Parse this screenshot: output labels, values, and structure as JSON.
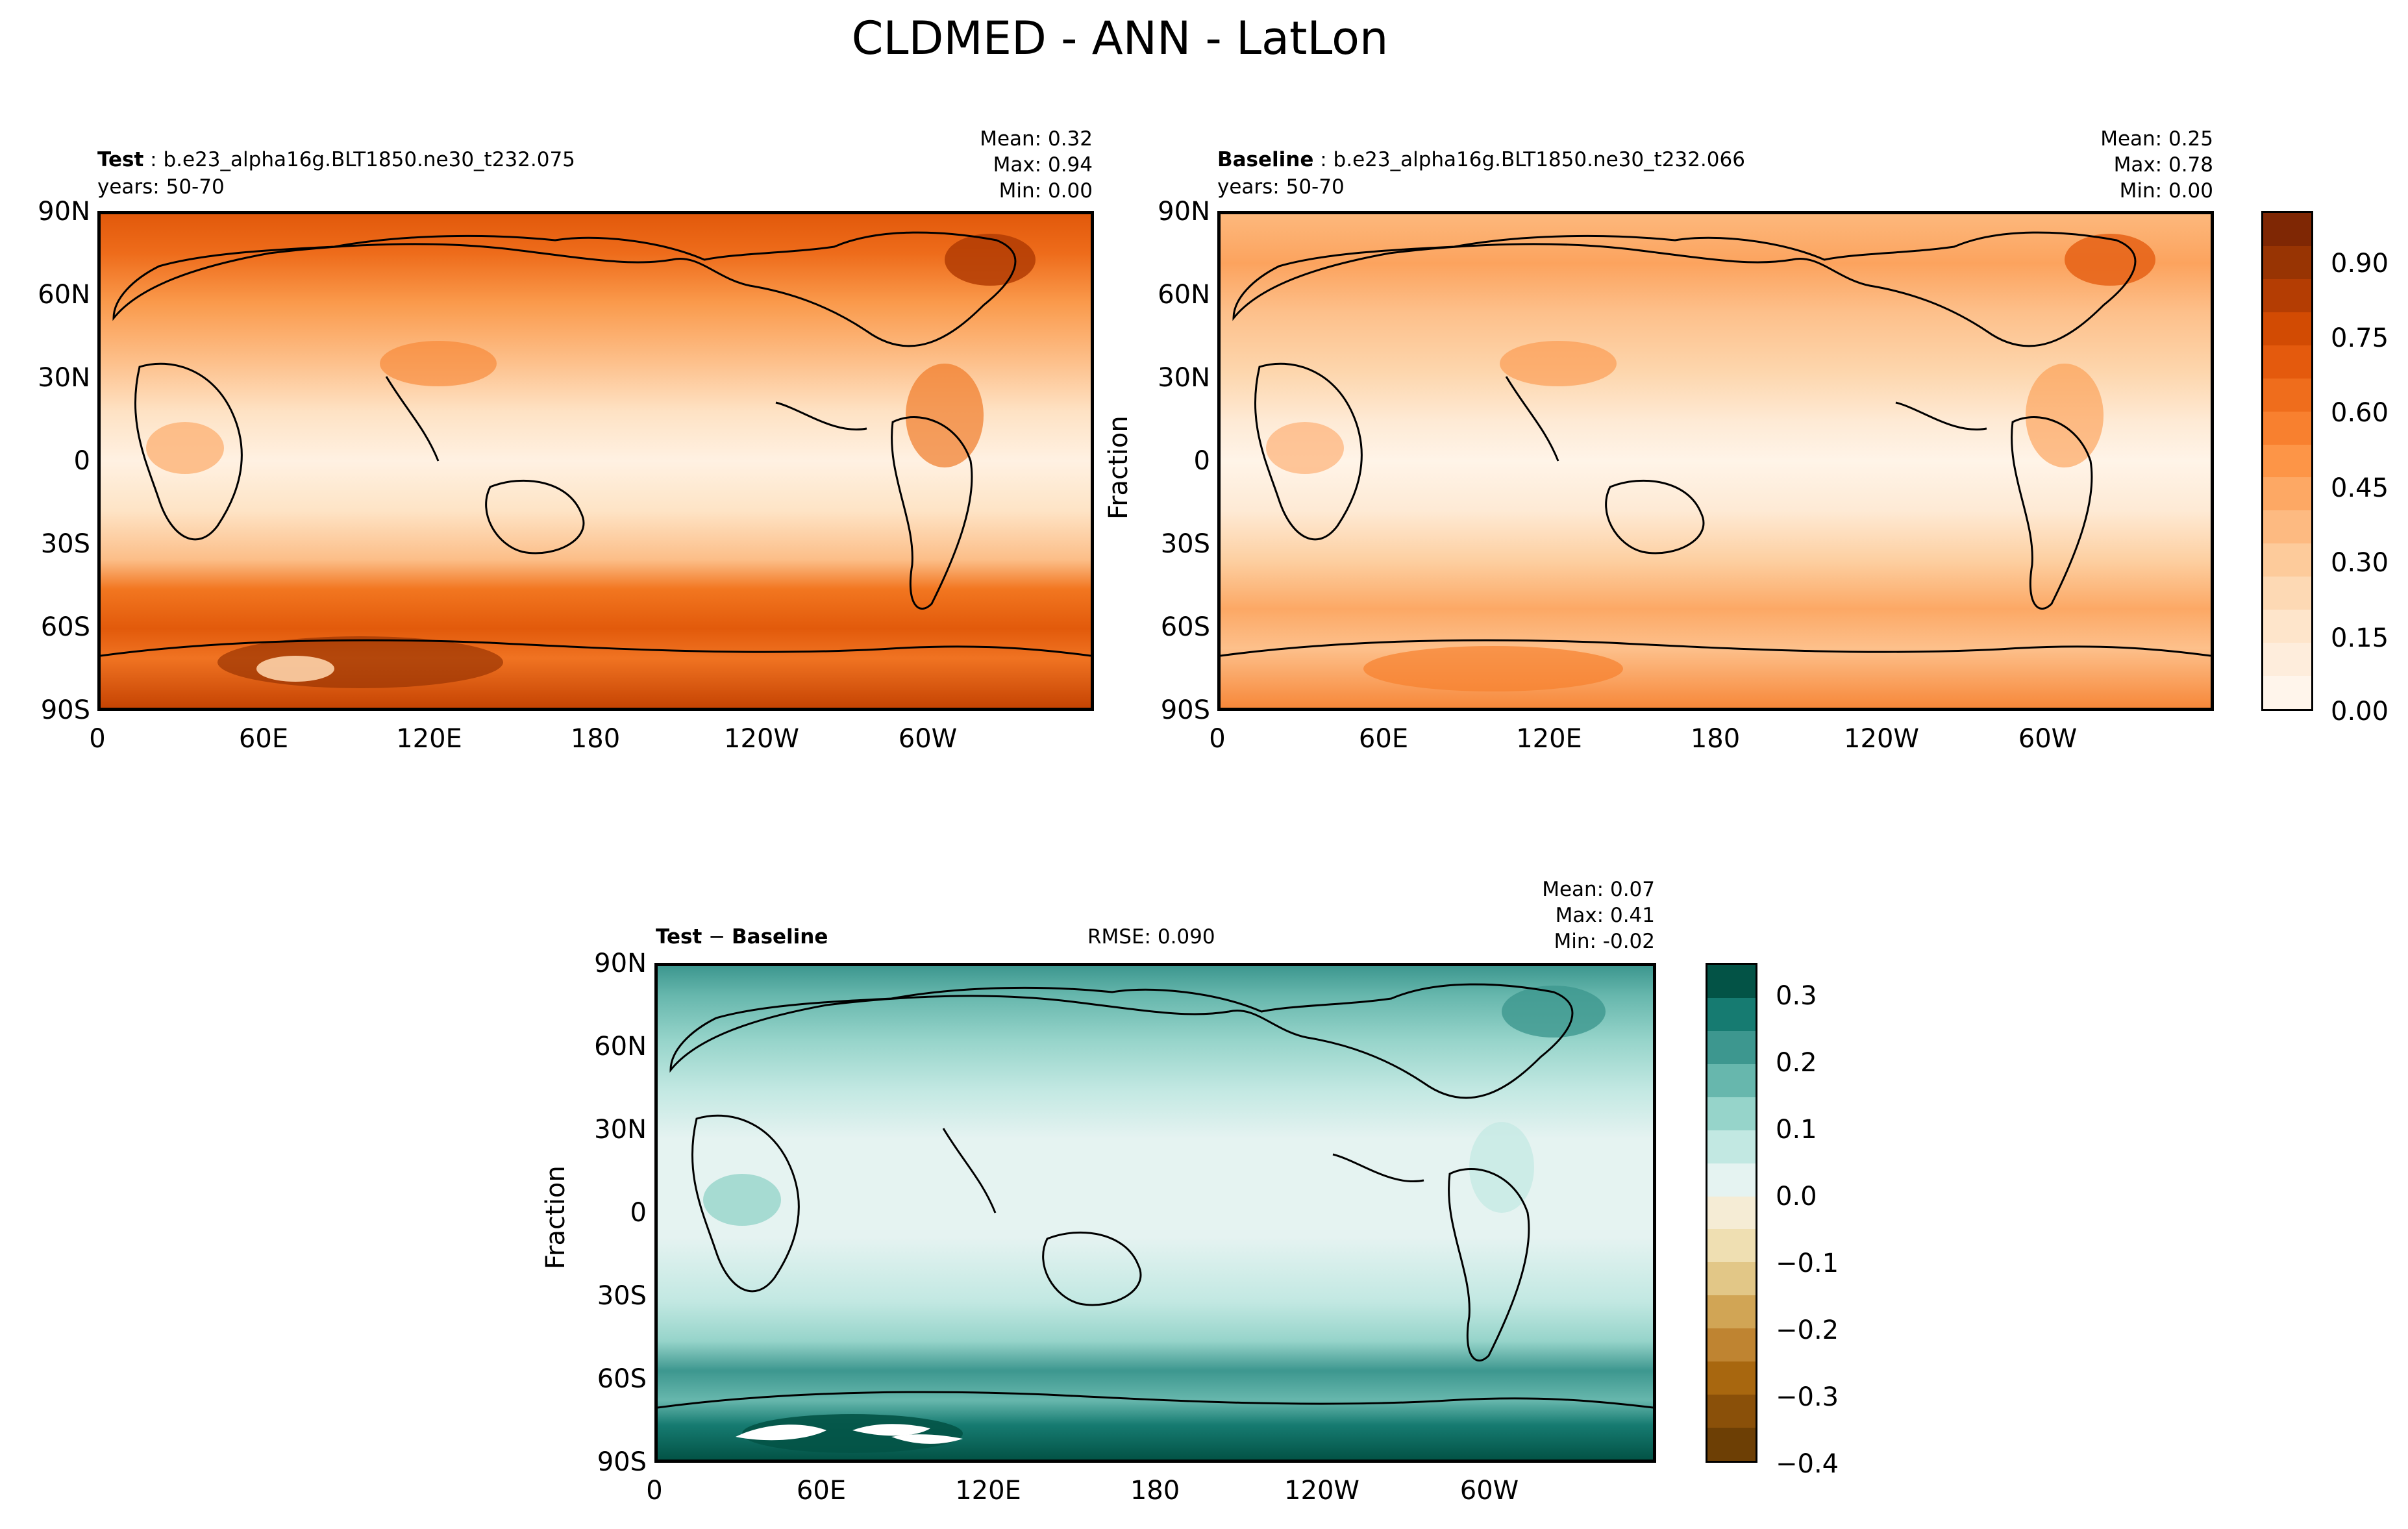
{
  "title": "CLDMED - ANN - LatLon",
  "colors": {
    "oranges": [
      "#fff5eb",
      "#feeddc",
      "#fee5cb",
      "#fdd9b4",
      "#fdcb9b",
      "#fdba81",
      "#fda864",
      "#fd9547",
      "#f8802f",
      "#ef6d1c",
      "#e45a0d",
      "#d24b03",
      "#b43d03",
      "#983403",
      "#7f2704"
    ],
    "brbg_neg": [
      "#6d3f05",
      "#8a5009",
      "#a8670f",
      "#bf8431",
      "#d1a555",
      "#e2c787",
      "#efdfb2",
      "#f5ecd5"
    ],
    "brbg_pos": [
      "#e5f3f1",
      "#c2e8e2",
      "#96d4ca",
      "#67b7ad",
      "#3d978f",
      "#167b71",
      "#035346"
    ]
  },
  "panels": {
    "test": {
      "label": "Test",
      "case": "b.e23_alpha16g.BLT1850.ne30_t232.075",
      "years": "years: 50-70",
      "mean": "Mean:  0.32",
      "max": "Max:  0.94",
      "min": "Min:  0.00"
    },
    "baseline": {
      "label": "Baseline",
      "case": "b.e23_alpha16g.BLT1850.ne30_t232.066",
      "years": "years: 50-70",
      "mean": "Mean:  0.25",
      "max": "Max:  0.78",
      "min": "Min:  0.00",
      "ylabel": "Fraction"
    },
    "diff": {
      "label": "Test",
      "minus": "−",
      "label2": "Baseline",
      "rmse": "RMSE: 0.090",
      "mean": "Mean:  0.07",
      "max": "Max:  0.41",
      "min": "Min: -0.02",
      "ylabel": "Fraction"
    }
  },
  "ticks": {
    "lat": [
      "90N",
      "60N",
      "30N",
      "0",
      "30S",
      "60S",
      "90S"
    ],
    "lon": [
      "0",
      "60E",
      "120E",
      "180",
      "120W",
      "60W"
    ]
  },
  "colorbars": {
    "main_ticks": [
      "0.90",
      "0.75",
      "0.60",
      "0.45",
      "0.30",
      "0.15",
      "0.00"
    ],
    "diff_ticks": [
      "0.3",
      "0.2",
      "0.1",
      "0.0",
      "−0.1",
      "−0.2",
      "−0.3",
      "−0.4"
    ]
  },
  "chart_data": [
    {
      "type": "heatmap",
      "title": "Test : b.e23_alpha16g.BLT1850.ne30_t232.075",
      "subtitle": "years: 50-70",
      "ylabel": "",
      "x_ticks": [
        "0",
        "60E",
        "120E",
        "180",
        "120W",
        "60W"
      ],
      "y_ticks": [
        "90N",
        "60N",
        "30N",
        "0",
        "30S",
        "60S",
        "90S"
      ],
      "stats": {
        "mean": 0.32,
        "max": 0.94,
        "min": 0.0
      },
      "colorbar_range": [
        0.0,
        1.0
      ]
    },
    {
      "type": "heatmap",
      "title": "Baseline : b.e23_alpha16g.BLT1850.ne30_t232.066",
      "subtitle": "years: 50-70",
      "ylabel": "Fraction",
      "x_ticks": [
        "0",
        "60E",
        "120E",
        "180",
        "120W",
        "60W"
      ],
      "y_ticks": [
        "90N",
        "60N",
        "30N",
        "0",
        "30S",
        "60S",
        "90S"
      ],
      "stats": {
        "mean": 0.25,
        "max": 0.78,
        "min": 0.0
      },
      "colorbar_range": [
        0.0,
        1.0
      ]
    },
    {
      "type": "heatmap",
      "title": "Test − Baseline",
      "ylabel": "Fraction",
      "x_ticks": [
        "0",
        "60E",
        "120E",
        "180",
        "120W",
        "60W"
      ],
      "y_ticks": [
        "90N",
        "60N",
        "30N",
        "0",
        "30S",
        "60S",
        "90S"
      ],
      "stats": {
        "mean": 0.07,
        "max": 0.41,
        "min": -0.02,
        "rmse": 0.09
      },
      "colorbar_range": [
        -0.4,
        0.35
      ]
    }
  ]
}
